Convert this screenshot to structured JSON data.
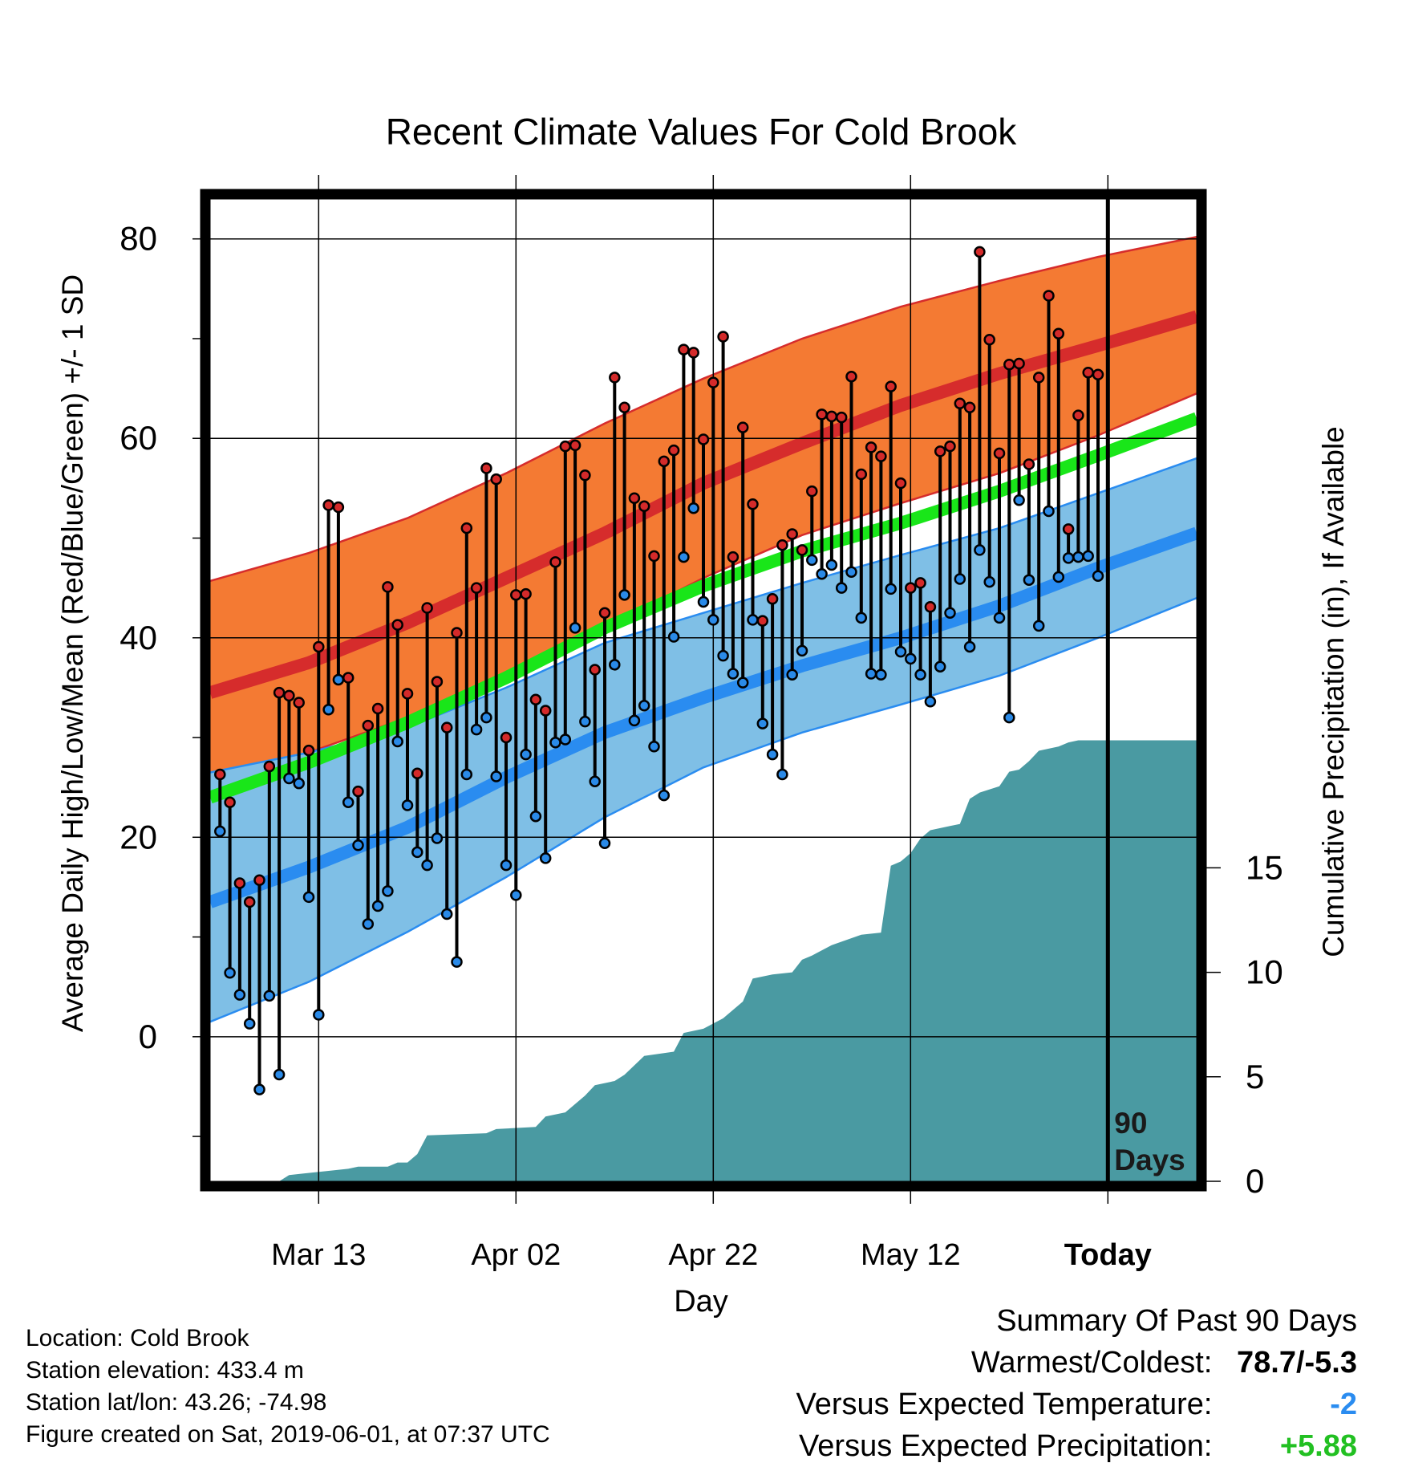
{
  "chart_data": {
    "type": "line",
    "title": "Recent Climate Values For Cold Brook",
    "xlabel": "Day",
    "ylabel": "Average Daily High/Low/Mean (Red/Blue/Green) +/- 1 SD",
    "y2label": "Cumulative Precipitation (in), If Available",
    "x_ticks": [
      "Mar 13",
      "Apr 02",
      "Apr 22",
      "May 12",
      "Today"
    ],
    "x_tick_days": [
      10,
      30,
      50,
      70,
      90
    ],
    "x_range_days": [
      -1,
      99
    ],
    "y_ticks": [
      0,
      20,
      40,
      60,
      80
    ],
    "ylim": [
      -14.5,
      84
    ],
    "y2_ticks": [
      0,
      5,
      10,
      15
    ],
    "y2lim": [
      0,
      47
    ],
    "today_label": "90\nDays",
    "normals": {
      "high_mean": [
        [
          -1,
          34.5
        ],
        [
          9,
          37.5
        ],
        [
          19,
          41.5
        ],
        [
          29,
          46
        ],
        [
          39,
          50.5
        ],
        [
          49,
          55.5
        ],
        [
          59,
          59.5
        ],
        [
          69,
          63.3
        ],
        [
          79,
          66.5
        ],
        [
          89,
          69.3
        ],
        [
          99,
          72.2
        ]
      ],
      "high_sd_upper": [
        [
          -1,
          45.7
        ],
        [
          9,
          48.5
        ],
        [
          19,
          52
        ],
        [
          29,
          56.5
        ],
        [
          39,
          61.5
        ],
        [
          49,
          66
        ],
        [
          59,
          70
        ],
        [
          69,
          73.2
        ],
        [
          79,
          75.8
        ],
        [
          89,
          78.2
        ],
        [
          99,
          80.2
        ]
      ],
      "high_sd_lower": [
        [
          -1,
          25
        ],
        [
          9,
          28.5
        ],
        [
          19,
          32
        ],
        [
          29,
          36
        ],
        [
          39,
          41
        ],
        [
          49,
          46
        ],
        [
          59,
          50.3
        ],
        [
          69,
          53.5
        ],
        [
          79,
          56.5
        ],
        [
          89,
          60.3
        ],
        [
          99,
          64.5
        ]
      ],
      "low_mean": [
        [
          -1,
          13.5
        ],
        [
          9,
          17
        ],
        [
          19,
          21
        ],
        [
          29,
          26
        ],
        [
          39,
          30.5
        ],
        [
          49,
          34
        ],
        [
          59,
          37.2
        ],
        [
          69,
          40
        ],
        [
          79,
          43.2
        ],
        [
          89,
          47
        ],
        [
          99,
          50.5
        ]
      ],
      "low_sd_upper": [
        [
          -1,
          26.5
        ],
        [
          9,
          28.5
        ],
        [
          19,
          31
        ],
        [
          29,
          35
        ],
        [
          39,
          39.5
        ],
        [
          49,
          42.5
        ],
        [
          59,
          45.5
        ],
        [
          69,
          48.3
        ],
        [
          79,
          51
        ],
        [
          89,
          54.5
        ],
        [
          99,
          58
        ]
      ],
      "low_sd_lower": [
        [
          -1,
          1.5
        ],
        [
          9,
          5.5
        ],
        [
          19,
          10.5
        ],
        [
          29,
          16
        ],
        [
          39,
          22
        ],
        [
          49,
          27
        ],
        [
          59,
          30.5
        ],
        [
          69,
          33.3
        ],
        [
          79,
          36.2
        ],
        [
          89,
          40
        ],
        [
          99,
          44
        ]
      ],
      "mean": [
        [
          -1,
          24
        ],
        [
          9,
          27.5
        ],
        [
          19,
          31.5
        ],
        [
          29,
          36
        ],
        [
          39,
          41
        ],
        [
          49,
          45.2
        ],
        [
          59,
          48.7
        ],
        [
          69,
          51.5
        ],
        [
          79,
          54.7
        ],
        [
          89,
          58.3
        ],
        [
          99,
          62
        ]
      ]
    },
    "daily_high": [
      26.3,
      23.5,
      15.4,
      13.5,
      15.7,
      27.1,
      34.5,
      34.2,
      33.5,
      28.7,
      39.1,
      53.3,
      53.1,
      36,
      24.6,
      31.2,
      32.9,
      45.1,
      41.3,
      34.4,
      26.4,
      43,
      35.6,
      31,
      40.5,
      51,
      45,
      57,
      55.9,
      30,
      44.3,
      44.4,
      33.8,
      32.7,
      47.6,
      59.2,
      59.3,
      56.3,
      36.8,
      42.5,
      66.1,
      63.1,
      54,
      53.2,
      48.2,
      57.7,
      58.8,
      68.9,
      68.6,
      59.9,
      65.6,
      70.2,
      48.1,
      61.1,
      53.4,
      41.7,
      43.9,
      49.3,
      50.4,
      48.8,
      54.7,
      62.4,
      62.2,
      62.1,
      66.2,
      56.4,
      59.1,
      58.2,
      65.2,
      55.5,
      45,
      45.5,
      43.1,
      58.7,
      59.2,
      63.5,
      63.1,
      78.7,
      69.9,
      58.5,
      67.4,
      67.5,
      57.4,
      66.1,
      74.3,
      70.5,
      50.9,
      62.3,
      66.6,
      66.4
    ],
    "daily_low": [
      20.6,
      6.4,
      4.2,
      1.3,
      -5.3,
      4.1,
      -3.8,
      25.9,
      25.4,
      14,
      2.2,
      32.8,
      35.8,
      23.5,
      19.2,
      11.3,
      13.1,
      14.6,
      29.6,
      23.2,
      18.5,
      17.2,
      19.9,
      12.3,
      7.5,
      26.3,
      30.8,
      32,
      26.1,
      17.2,
      14.2,
      28.3,
      22.1,
      17.9,
      29.5,
      29.8,
      41,
      31.6,
      25.6,
      19.4,
      37.3,
      44.3,
      31.7,
      33.2,
      29.1,
      24.2,
      40.1,
      48.1,
      53,
      43.6,
      41.8,
      38.2,
      36.4,
      35.5,
      41.8,
      31.4,
      28.3,
      26.3,
      36.3,
      38.7,
      47.8,
      46.4,
      47.3,
      45,
      46.6,
      42,
      36.4,
      36.3,
      44.9,
      38.6,
      37.9,
      36.3,
      33.6,
      37.1,
      42.5,
      45.9,
      39.1,
      48.8,
      45.6,
      42,
      32,
      53.8,
      45.8,
      41.2,
      52.7,
      46.1,
      48,
      48.1,
      48.2,
      46.2
    ],
    "cumulative_precip": [
      [
        0,
        0
      ],
      [
        6,
        0
      ],
      [
        7,
        0.3
      ],
      [
        11,
        0.5
      ],
      [
        13,
        0.6
      ],
      [
        14,
        0.7
      ],
      [
        17,
        0.7
      ],
      [
        18,
        0.9
      ],
      [
        19,
        0.9
      ],
      [
        20,
        1.3
      ],
      [
        21,
        2.2
      ],
      [
        27,
        2.3
      ],
      [
        28,
        2.5
      ],
      [
        32,
        2.6
      ],
      [
        33,
        3.1
      ],
      [
        35,
        3.3
      ],
      [
        37,
        4.1
      ],
      [
        38,
        4.6
      ],
      [
        40,
        4.8
      ],
      [
        41,
        5.1
      ],
      [
        43,
        6.0
      ],
      [
        46,
        6.2
      ],
      [
        47,
        7.1
      ],
      [
        49,
        7.3
      ],
      [
        51,
        7.8
      ],
      [
        53,
        8.6
      ],
      [
        54,
        9.7
      ],
      [
        56,
        9.9
      ],
      [
        58,
        10.0
      ],
      [
        59,
        10.6
      ],
      [
        60,
        10.8
      ],
      [
        62,
        11.3
      ],
      [
        65,
        11.8
      ],
      [
        67,
        11.9
      ],
      [
        68,
        15.1
      ],
      [
        69,
        15.3
      ],
      [
        70,
        15.7
      ],
      [
        71,
        16.4
      ],
      [
        72,
        16.8
      ],
      [
        74,
        17.0
      ],
      [
        75,
        17.1
      ],
      [
        76,
        18.3
      ],
      [
        77,
        18.6
      ],
      [
        79,
        18.9
      ],
      [
        80,
        19.6
      ],
      [
        81,
        19.7
      ],
      [
        82,
        20.1
      ],
      [
        83,
        20.6
      ],
      [
        85,
        20.8
      ],
      [
        86,
        21.0
      ],
      [
        87,
        21.1
      ],
      [
        89,
        21.1
      ],
      [
        99,
        21.1
      ]
    ],
    "colors": {
      "high_band": "#f47a33",
      "high_line": "#d62c2c",
      "low_band": "#7fbfe6",
      "low_line": "#2a8cf0",
      "mean_line": "#19e619",
      "precip": "#4a9aa2",
      "high_marker": "#d42a2a",
      "low_marker": "#2a8ae8"
    }
  },
  "info": {
    "location": "Location: Cold Brook",
    "elevation": "Station elevation: 433.4 m",
    "latlon": "Station lat/lon: 43.26; -74.98",
    "created": "Figure created on Sat, 2019-06-01, at 07:37 UTC"
  },
  "summary": {
    "heading": "Summary Of Past 90 Days",
    "warmest_label": "Warmest/Coldest:",
    "warmest_value": "78.7/-5.3",
    "temp_label": "Versus Expected Temperature:",
    "temp_value": "-2",
    "temp_color": "#2a8cf0",
    "precip_label": "Versus Expected Precipitation:",
    "precip_value": "+5.88",
    "precip_color": "#22c022"
  }
}
